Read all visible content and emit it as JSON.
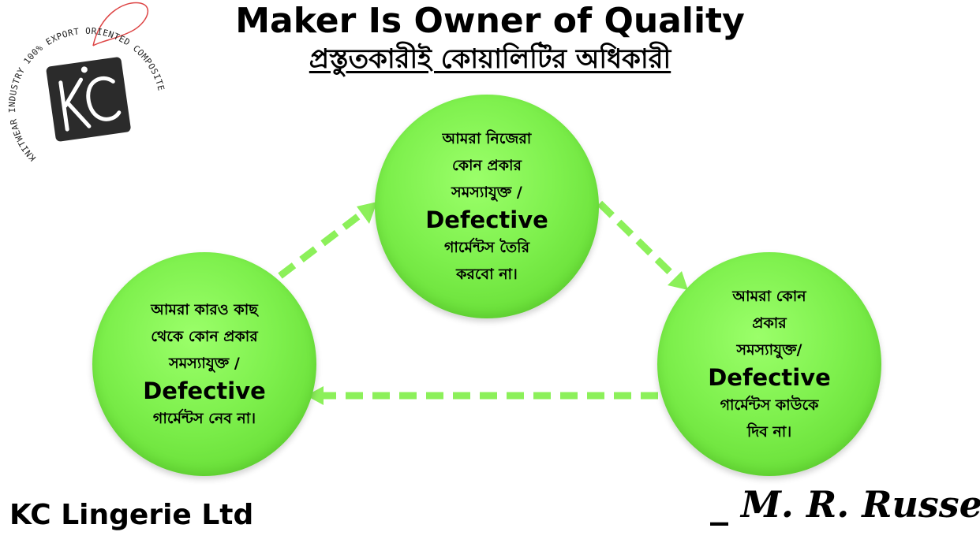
{
  "header": {
    "title": "Maker Is Owner of Quality",
    "subtitle": "প্রস্তুতকারীই কোয়ালিটির অধিকারী"
  },
  "logo": {
    "ring_text": "KNITWEAR INDUSTRY 100% EXPORT ORIENTED COMPOSITE",
    "monogram": "KC"
  },
  "nodes": {
    "top": {
      "lines": [
        "আমরা নিজেরা",
        "কোন প্রকার",
        "সমস্যাযুক্ত /"
      ],
      "keyword": "Defective",
      "tail": [
        "গার্মেন্টস তৈরি",
        "করবো না।"
      ]
    },
    "right": {
      "lines": [
        "আমরা কোন",
        "প্রকার",
        "সমস্যাযুক্ত/"
      ],
      "keyword": "Defective",
      "tail": [
        "গার্মেন্টস কাউকে",
        "দিব না।"
      ]
    },
    "left": {
      "lines": [
        "আমরা কারও কাছ",
        "থেকে কোন প্রকার",
        "সমস্যাযুক্ত /"
      ],
      "keyword": "Defective",
      "tail": [
        "গার্মেন্টস নেব না।"
      ]
    }
  },
  "footer": {
    "company": "KC Lingerie Ltd",
    "signature": "_ M. R. Russell"
  },
  "colors": {
    "node_fill": "#7ef04d",
    "arrow": "#8cf05a"
  }
}
